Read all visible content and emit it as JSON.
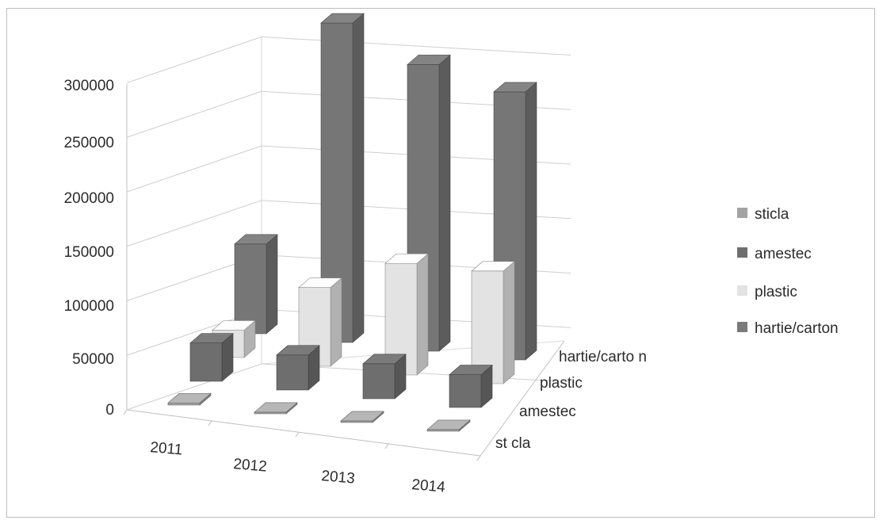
{
  "chart_data": {
    "type": "bar",
    "subtype": "3d-clustered-column",
    "categories": [
      "2011",
      "2012",
      "2013",
      "2014"
    ],
    "series": [
      {
        "name": "sticla",
        "values": [
          2000,
          1500,
          1500,
          1500
        ],
        "color": "#a3a3a3"
      },
      {
        "name": "amestec",
        "values": [
          35000,
          32000,
          32000,
          30000
        ],
        "color": "#6e6e6e"
      },
      {
        "name": "plastic",
        "values": [
          25000,
          72000,
          102000,
          103000
        ],
        "color": "#e3e3e3"
      },
      {
        "name": "hartie/carton",
        "values": [
          82000,
          292000,
          262000,
          245000
        ],
        "color": "#767676"
      }
    ],
    "y_ticks": [
      "300000",
      "250000",
      "200000",
      "150000",
      "100000",
      "50000",
      "0"
    ],
    "depth_labels": [
      "st cla",
      "amestec",
      "plastic",
      "hartie/carto n"
    ],
    "ylim": [
      0,
      300000
    ],
    "grid": true,
    "legend": {
      "position": "right",
      "entries": [
        {
          "label": "sticla",
          "color": "#a3a3a3"
        },
        {
          "label": "amestec",
          "color": "#6e6e6e"
        },
        {
          "label": "plastic",
          "color": "#e3e3e3"
        },
        {
          "label": "hartie/carton",
          "color": "#7a7a7a"
        }
      ]
    }
  }
}
